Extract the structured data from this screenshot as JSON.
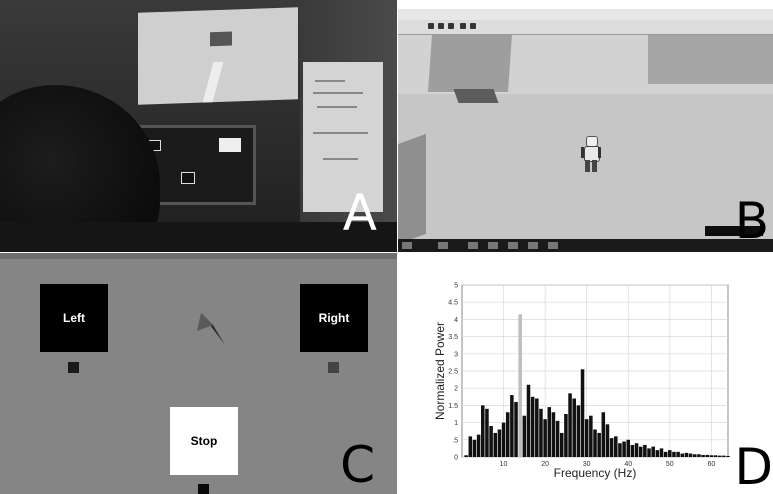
{
  "panel_a": {
    "letter": "A"
  },
  "panel_b": {
    "letter": "B"
  },
  "panel_c": {
    "letter": "C",
    "targets": {
      "left": "Left",
      "right": "Right",
      "stop": "Stop"
    }
  },
  "panel_d": {
    "letter": "D"
  },
  "chart_data": {
    "type": "bar",
    "xlabel": "Frequency (Hz)",
    "ylabel": "Normalized Power",
    "xlim": [
      0,
      64
    ],
    "ylim": [
      0,
      5
    ],
    "xticks": [
      10,
      20,
      30,
      40,
      50,
      60
    ],
    "yticks": [
      0,
      0.5,
      1,
      1.5,
      2,
      2.5,
      3,
      3.5,
      4,
      4.5,
      5
    ],
    "ytick_labels": [
      "0",
      ".5",
      "1",
      "1.5",
      "2",
      "2.5",
      "3",
      "3.5",
      "4",
      "4.5",
      "5"
    ],
    "grid": true,
    "highlight_color": "#bdbdbd",
    "bar_color": "#111111",
    "x": [
      1,
      2,
      3,
      4,
      5,
      6,
      7,
      8,
      9,
      10,
      11,
      12,
      13,
      14,
      15,
      16,
      17,
      18,
      19,
      20,
      21,
      22,
      23,
      24,
      25,
      26,
      27,
      28,
      29,
      30,
      31,
      32,
      33,
      34,
      35,
      36,
      37,
      38,
      39,
      40,
      41,
      42,
      43,
      44,
      45,
      46,
      47,
      48,
      49,
      50,
      51,
      52,
      53,
      54,
      55,
      56,
      57,
      58,
      59,
      60,
      61,
      62,
      63,
      64
    ],
    "values": [
      0.05,
      0.6,
      0.5,
      0.65,
      1.5,
      1.4,
      0.9,
      0.7,
      0.8,
      1.0,
      1.3,
      1.8,
      1.6,
      4.15,
      1.2,
      2.1,
      1.75,
      1.7,
      1.4,
      1.1,
      1.45,
      1.3,
      1.05,
      0.7,
      1.25,
      1.85,
      1.7,
      1.5,
      2.55,
      1.1,
      1.2,
      0.8,
      0.7,
      1.3,
      0.95,
      0.55,
      0.6,
      0.4,
      0.45,
      0.5,
      0.35,
      0.4,
      0.3,
      0.35,
      0.25,
      0.3,
      0.2,
      0.25,
      0.15,
      0.2,
      0.15,
      0.15,
      0.1,
      0.12,
      0.1,
      0.08,
      0.08,
      0.06,
      0.06,
      0.05,
      0.05,
      0.04,
      0.04,
      0.03
    ],
    "highlight_index": 13
  }
}
